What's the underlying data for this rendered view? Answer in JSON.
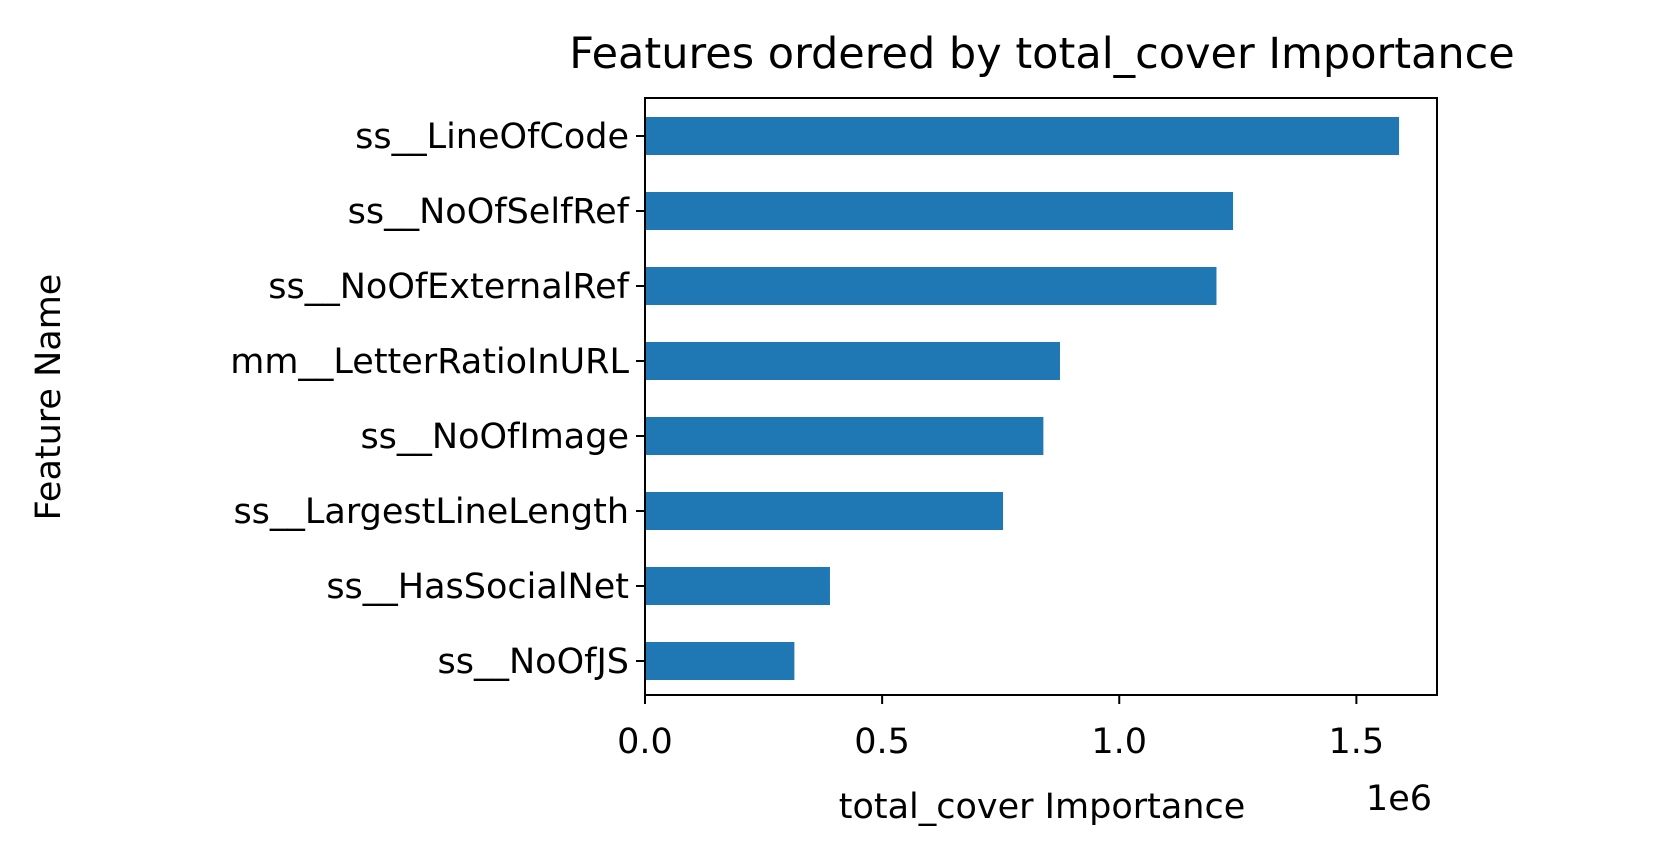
{
  "chart_data": {
    "type": "bar",
    "orientation": "horizontal",
    "title": "Features ordered by total_cover Importance",
    "xlabel": "total_cover Importance",
    "ylabel": "Feature Name",
    "x_offset_label": "1e6",
    "x_scale": 1000000,
    "xlim": [
      0,
      1670000
    ],
    "x_ticks": [
      0,
      500000,
      1000000,
      1500000
    ],
    "x_tick_labels": [
      "0.0",
      "0.5",
      "1.0",
      "1.5"
    ],
    "categories": [
      "ss__LineOfCode",
      "ss__NoOfSelfRef",
      "ss__NoOfExternalRef",
      "mm__LetterRatioInURL",
      "ss__NoOfImage",
      "ss__LargestLineLength",
      "ss__HasSocialNet",
      "ss__NoOfJS"
    ],
    "values": [
      1590000,
      1240000,
      1205000,
      875000,
      840000,
      755000,
      390000,
      315000
    ],
    "bar_color": "#1f77b4",
    "grid": false,
    "legend": "none"
  }
}
